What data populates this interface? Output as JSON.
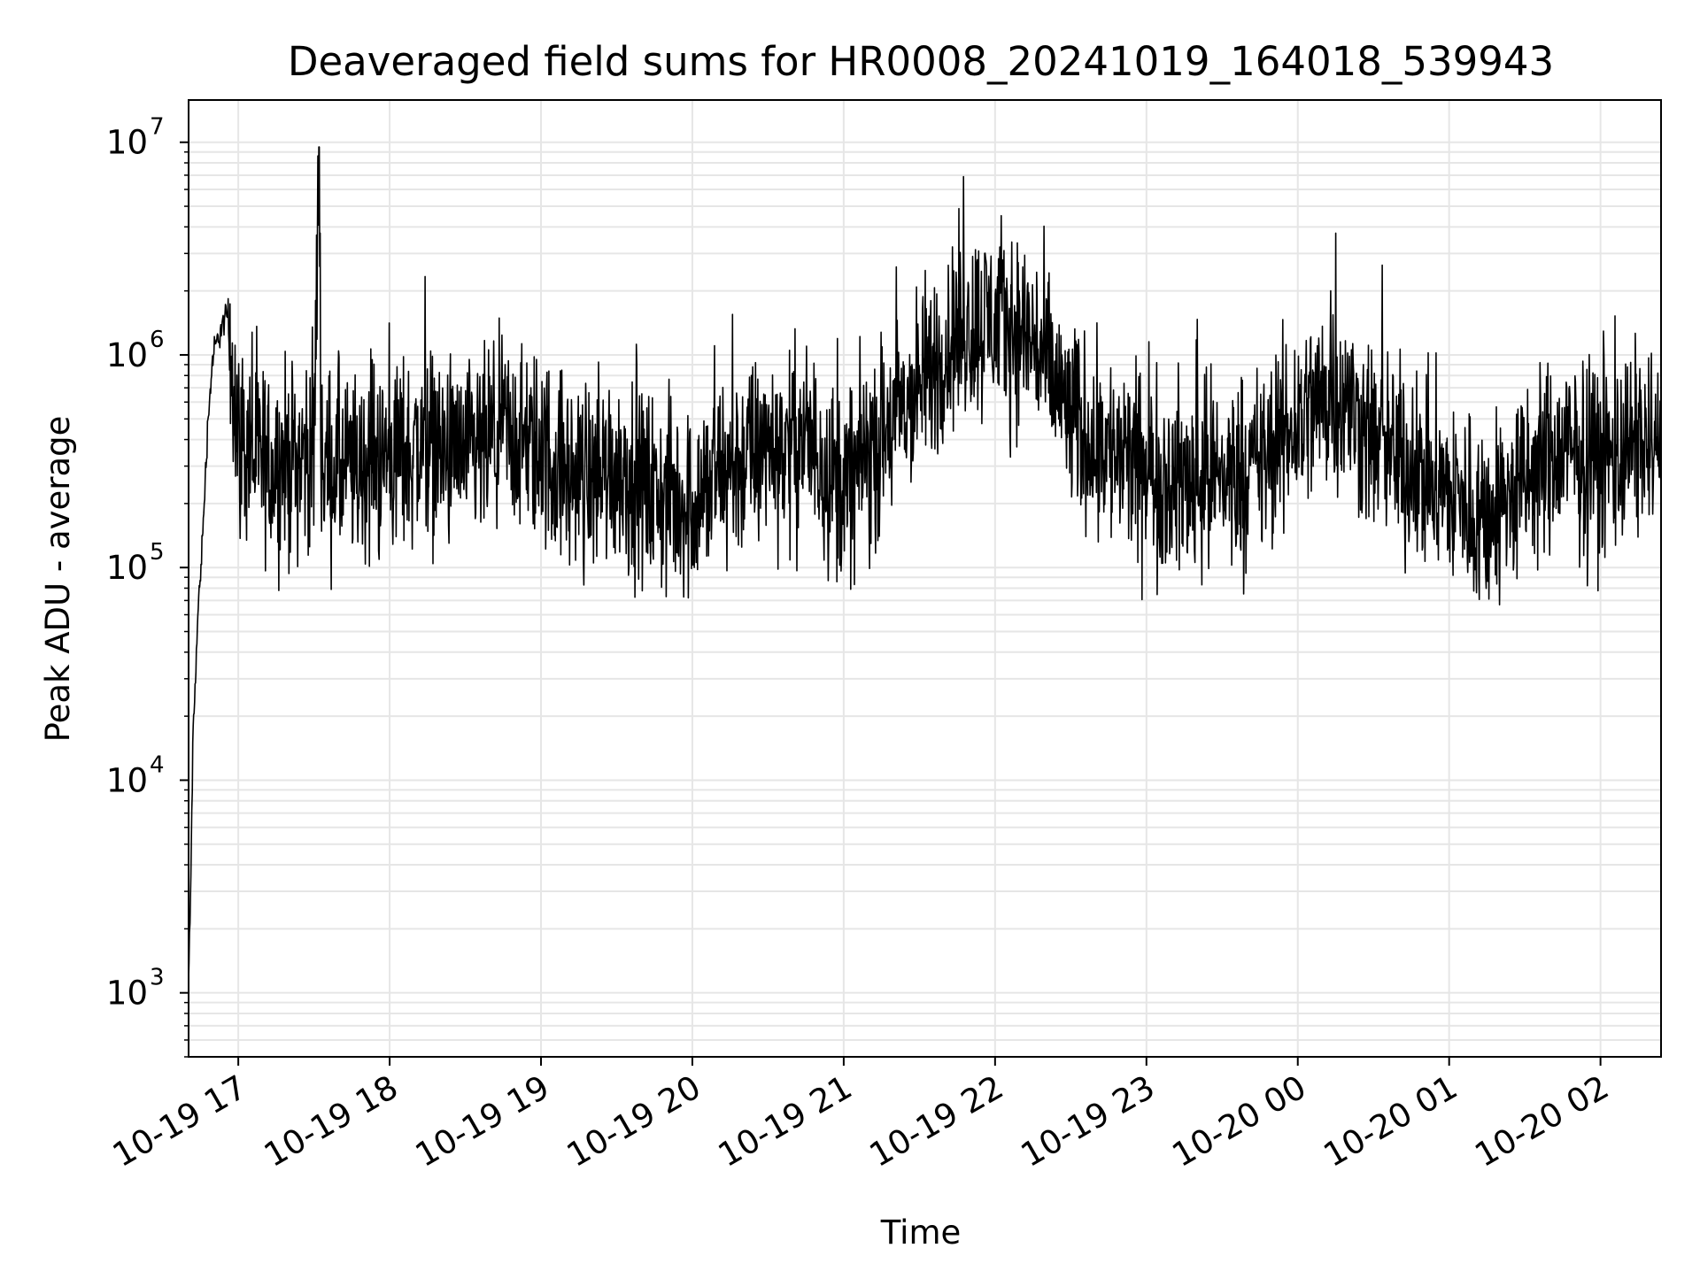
{
  "chart_data": {
    "type": "line",
    "title": "Deaveraged field sums for HR0008_20241019_164018_539943",
    "xlabel": "Time",
    "ylabel": "Peak ADU - average",
    "y_scale": "log",
    "ylim": [
      500,
      15800000
    ],
    "xlim": [
      "2024-10-19 16:40:18",
      "2024-10-20 02:24:00"
    ],
    "x_ticks": [
      {
        "value": "2024-10-19 17:00",
        "label": "10-19 17"
      },
      {
        "value": "2024-10-19 18:00",
        "label": "10-19 18"
      },
      {
        "value": "2024-10-19 19:00",
        "label": "10-19 19"
      },
      {
        "value": "2024-10-19 20:00",
        "label": "10-19 20"
      },
      {
        "value": "2024-10-19 21:00",
        "label": "10-19 21"
      },
      {
        "value": "2024-10-19 22:00",
        "label": "10-19 22"
      },
      {
        "value": "2024-10-19 23:00",
        "label": "10-19 23"
      },
      {
        "value": "2024-10-20 00:00",
        "label": "10-20 00"
      },
      {
        "value": "2024-10-20 01:00",
        "label": "10-20 01"
      },
      {
        "value": "2024-10-20 02:00",
        "label": "10-20 02"
      }
    ],
    "y_ticks": [
      {
        "value": 1000,
        "base": "10",
        "exp": "3"
      },
      {
        "value": 10000,
        "base": "10",
        "exp": "4"
      },
      {
        "value": 100000,
        "base": "10",
        "exp": "5"
      },
      {
        "value": 1000000,
        "base": "10",
        "exp": "6"
      },
      {
        "value": 10000000,
        "base": "10",
        "exp": "7"
      }
    ],
    "grid": true,
    "line_color": "#000000",
    "grid_color": "#e6e6e6",
    "series": [
      {
        "x": [
          "2024-10-19 16:40",
          "2024-10-19 16:41",
          "2024-10-19 16:42",
          "2024-10-19 16:44",
          "2024-10-19 16:46",
          "2024-10-19 16:48",
          "2024-10-19 16:50",
          "2024-10-19 16:53",
          "2024-10-19 16:56",
          "2024-10-19 17:00",
          "2024-10-19 17:05",
          "2024-10-19 17:10",
          "2024-10-19 17:20",
          "2024-10-19 17:30",
          "2024-10-19 17:32",
          "2024-10-19 17:33",
          "2024-10-19 17:45",
          "2024-10-19 18:00",
          "2024-10-19 18:15",
          "2024-10-19 18:30",
          "2024-10-19 18:45",
          "2024-10-19 19:00",
          "2024-10-19 19:15",
          "2024-10-19 19:30",
          "2024-10-19 19:45",
          "2024-10-19 20:00",
          "2024-10-19 20:15",
          "2024-10-19 20:30",
          "2024-10-19 20:45",
          "2024-10-19 21:00",
          "2024-10-19 21:15",
          "2024-10-19 21:30",
          "2024-10-19 21:45",
          "2024-10-19 22:00",
          "2024-10-19 22:15",
          "2024-10-19 22:30",
          "2024-10-19 22:45",
          "2024-10-19 23:00",
          "2024-10-19 23:15",
          "2024-10-19 23:30",
          "2024-10-19 23:45",
          "2024-10-20 00:00",
          "2024-10-20 00:15",
          "2024-10-20 00:30",
          "2024-10-20 00:45",
          "2024-10-20 01:00",
          "2024-10-20 01:15",
          "2024-10-20 01:30",
          "2024-10-20 01:45",
          "2024-10-20 02:00",
          "2024-10-20 02:15",
          "2024-10-20 02:24"
        ],
        "y": [
          800,
          2500,
          15000,
          60000,
          150000,
          500000,
          1000000,
          1300000,
          1600000,
          400000,
          350000,
          300000,
          320000,
          350000,
          9500000,
          300000,
          280000,
          330000,
          380000,
          300000,
          420000,
          350000,
          250000,
          300000,
          220000,
          200000,
          300000,
          350000,
          400000,
          230000,
          400000,
          700000,
          1300000,
          1500000,
          1200000,
          500000,
          350000,
          280000,
          250000,
          270000,
          300000,
          500000,
          700000,
          400000,
          300000,
          220000,
          170000,
          250000,
          350000,
          300000,
          400000,
          350000
        ],
        "noise_band_decades": 0.45
      }
    ]
  }
}
